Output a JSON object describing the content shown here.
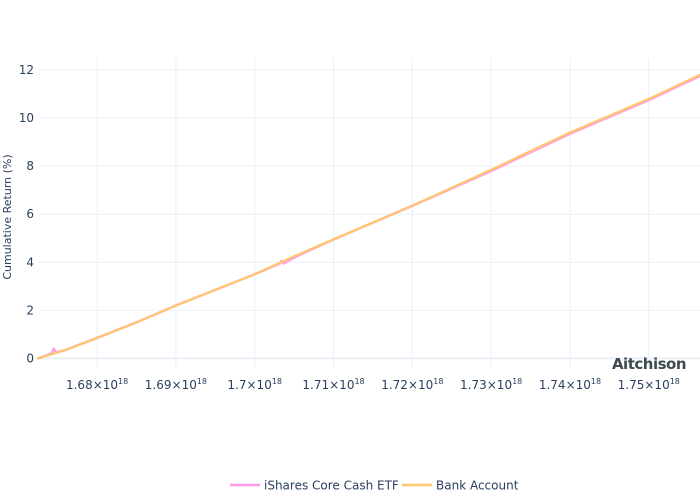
{
  "chart_data": {
    "type": "line",
    "title": "",
    "xlabel": "",
    "ylabel": "Cumulative Return (%)",
    "xlim": [
      1.6725e+18,
      1.7565e+18
    ],
    "ylim": [
      -0.4,
      12.5
    ],
    "x_ticks": [
      {
        "value": 1.68e+18,
        "mantissa": "1.68",
        "exp": "18"
      },
      {
        "value": 1.69e+18,
        "mantissa": "1.69",
        "exp": "18"
      },
      {
        "value": 1.7e+18,
        "mantissa": "1.7",
        "exp": "18"
      },
      {
        "value": 1.71e+18,
        "mantissa": "1.71",
        "exp": "18"
      },
      {
        "value": 1.72e+18,
        "mantissa": "1.72",
        "exp": "18"
      },
      {
        "value": 1.73e+18,
        "mantissa": "1.73",
        "exp": "18"
      },
      {
        "value": 1.74e+18,
        "mantissa": "1.74",
        "exp": "18"
      },
      {
        "value": 1.75e+18,
        "mantissa": "1.75",
        "exp": "18"
      }
    ],
    "y_ticks": [
      0,
      2,
      4,
      6,
      8,
      10,
      12
    ],
    "grid": true,
    "legend_position": "bottom-center",
    "series": [
      {
        "name": "iShares Core Cash ETF",
        "color": "#ff9de6",
        "x": [
          1.6725e+18,
          1.6742e+18,
          1.6745e+18,
          1.6748e+18,
          1.676e+18,
          1.68e+18,
          1.685e+18,
          1.69e+18,
          1.695e+18,
          1.7e+18,
          1.7032e+18,
          1.7034e+18,
          1.7037e+18,
          1.705e+18,
          1.71e+18,
          1.72e+18,
          1.73e+18,
          1.74e+18,
          1.75e+18,
          1.7565e+18
        ],
        "y": [
          0,
          0.2,
          0.4,
          0.25,
          0.35,
          0.85,
          1.5,
          2.2,
          2.85,
          3.5,
          3.95,
          4.05,
          3.95,
          4.2,
          4.95,
          6.35,
          7.8,
          9.35,
          10.75,
          11.75
        ]
      },
      {
        "name": "Bank Account",
        "color": "#ffc66e",
        "x": [
          1.6725e+18,
          1.676e+18,
          1.68e+18,
          1.685e+18,
          1.69e+18,
          1.695e+18,
          1.7e+18,
          1.705e+18,
          1.71e+18,
          1.72e+18,
          1.73e+18,
          1.74e+18,
          1.75e+18,
          1.7565e+18
        ],
        "y": [
          0,
          0.35,
          0.85,
          1.5,
          2.2,
          2.85,
          3.5,
          4.25,
          4.95,
          6.35,
          7.85,
          9.4,
          10.8,
          11.8
        ]
      }
    ]
  },
  "watermark": "Aitchison"
}
